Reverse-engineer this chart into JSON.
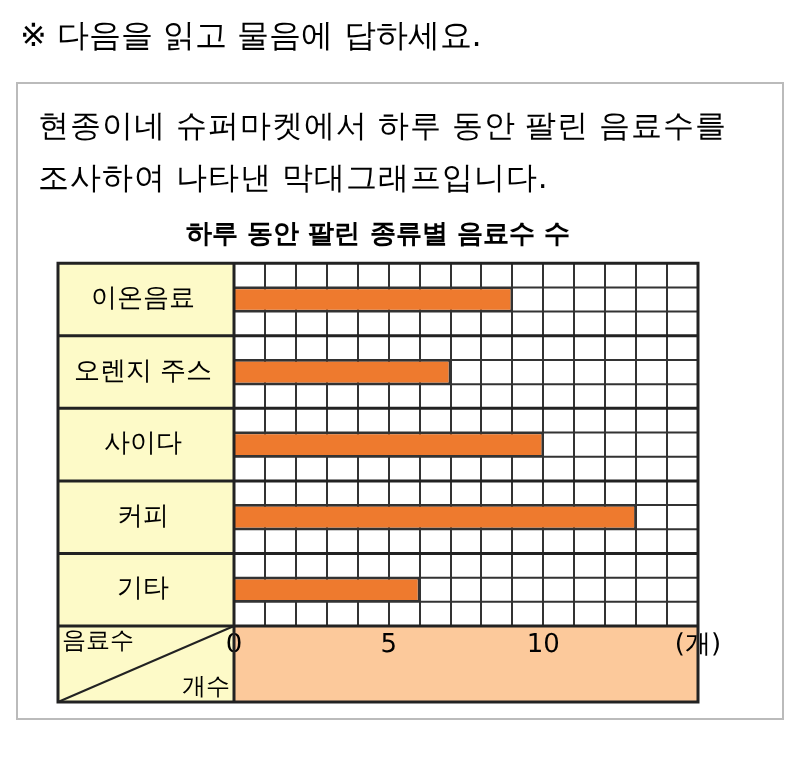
{
  "chart_data": {
    "type": "bar",
    "orientation": "horizontal",
    "title": "하루 동안 팔린 종류별 음료수 수",
    "ylabel": "음료수",
    "xlabel": "개수",
    "annotations": [
      "※ 다음을 읽고 물음에 답하세요.",
      "현종이네 슈퍼마켓에서 하루 동안 팔린 음료수를 조사하여 나타낸 막대그래프입니다."
    ],
    "categories": [
      "이온음료",
      "오렌지 주스",
      "사이다",
      "커피",
      "기타"
    ],
    "values": [
      9,
      7,
      10,
      13,
      6
    ],
    "color": "#ee7a2e",
    "xlim": [
      0,
      15
    ],
    "xticks": [
      0,
      {
        "value": 1,
        "label": null
      },
      {
        "value": 2,
        "label": null
      },
      {
        "value": 3,
        "label": null
      },
      {
        "value": 4,
        "label": null
      },
      5,
      {
        "value": 6,
        "label": null
      },
      {
        "value": 7,
        "label": null
      },
      {
        "value": 8,
        "label": null
      },
      {
        "value": 9,
        "label": null
      },
      10,
      {
        "value": 11,
        "label": null
      },
      {
        "value": 12,
        "label": null
      },
      {
        "value": 13,
        "label": null
      },
      {
        "value": 14,
        "label": null
      },
      {
        "value": 15,
        "label": "(개)"
      }
    ],
    "grid": true,
    "legend": false
  }
}
